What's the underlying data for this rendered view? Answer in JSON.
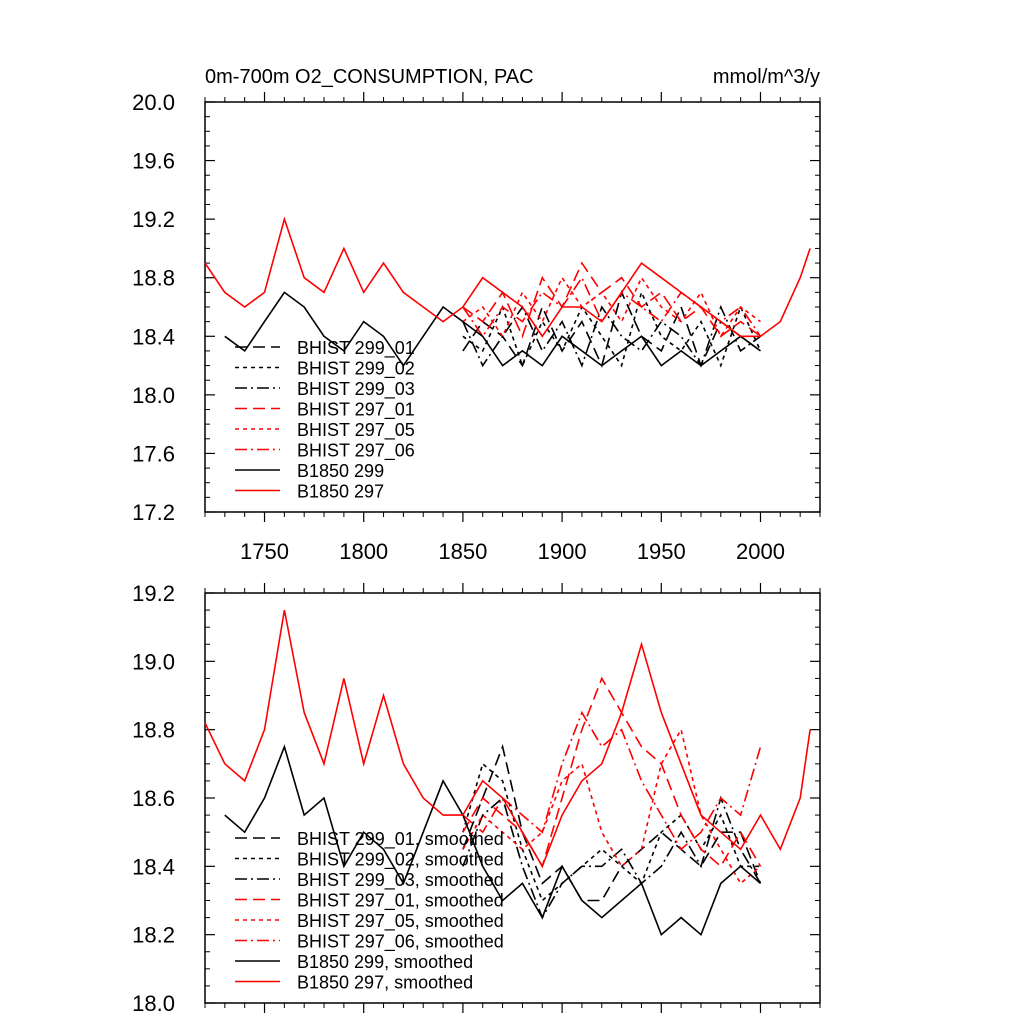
{
  "chart_data": [
    {
      "type": "line",
      "title_left": "0m-700m O2_CONSUMPTION, PAC",
      "title_right": "mmol/m^3/y",
      "xlim": [
        1720,
        2030
      ],
      "ylim": [
        17.2,
        20.0
      ],
      "xticks": [
        1750,
        1800,
        1850,
        1900,
        1950,
        2000
      ],
      "yticks": [
        17.2,
        17.6,
        18.0,
        18.4,
        18.8,
        19.2,
        19.6,
        20.0
      ],
      "ytick_labels": [
        "17.2",
        "17.6",
        "18.0",
        "18.4",
        "18.8",
        "19.2",
        "19.6",
        "20.0"
      ],
      "legend": [
        "BHIST 299_01",
        "BHIST 299_02",
        "BHIST 299_03",
        "BHIST 297_01",
        "BHIST 297_05",
        "BHIST 297_06",
        "B1850 299",
        "B1850 297"
      ],
      "series": [
        {
          "name": "BHIST 299_01",
          "color": "#000000",
          "dash": "long",
          "x": [
            1850,
            1860,
            1870,
            1880,
            1890,
            1900,
            1910,
            1920,
            1930,
            1940,
            1950,
            1960,
            1970,
            1980,
            1990,
            2000
          ],
          "values": [
            18.3,
            18.5,
            18.4,
            18.2,
            18.6,
            18.3,
            18.5,
            18.2,
            18.7,
            18.4,
            18.3,
            18.6,
            18.2,
            18.5,
            18.4,
            18.3
          ]
        },
        {
          "name": "BHIST 299_02",
          "color": "#000000",
          "dash": "short",
          "x": [
            1850,
            1860,
            1870,
            1880,
            1890,
            1900,
            1910,
            1920,
            1930,
            1940,
            1950,
            1960,
            1970,
            1980,
            1990,
            2000
          ],
          "values": [
            18.4,
            18.3,
            18.6,
            18.2,
            18.5,
            18.3,
            18.6,
            18.4,
            18.2,
            18.7,
            18.4,
            18.3,
            18.5,
            18.2,
            18.6,
            18.3
          ]
        },
        {
          "name": "BHIST 299_03",
          "color": "#000000",
          "dash": "dashdot",
          "x": [
            1850,
            1860,
            1870,
            1880,
            1890,
            1900,
            1910,
            1920,
            1930,
            1940,
            1950,
            1960,
            1970,
            1980,
            1990,
            2000
          ],
          "values": [
            18.5,
            18.2,
            18.4,
            18.6,
            18.3,
            18.5,
            18.2,
            18.6,
            18.4,
            18.3,
            18.5,
            18.4,
            18.2,
            18.6,
            18.3,
            18.4
          ]
        },
        {
          "name": "BHIST 297_01",
          "color": "#ff0000",
          "dash": "long",
          "x": [
            1850,
            1860,
            1870,
            1880,
            1890,
            1900,
            1910,
            1920,
            1930,
            1940,
            1950,
            1960,
            1970,
            1980,
            1990,
            2000
          ],
          "values": [
            18.6,
            18.5,
            18.7,
            18.4,
            18.8,
            18.6,
            18.9,
            18.7,
            18.8,
            18.6,
            18.7,
            18.5,
            18.6,
            18.4,
            18.5,
            18.4
          ]
        },
        {
          "name": "BHIST 297_05",
          "color": "#ff0000",
          "dash": "short",
          "x": [
            1850,
            1860,
            1870,
            1880,
            1890,
            1900,
            1910,
            1920,
            1930,
            1940,
            1950,
            1960,
            1970,
            1980,
            1990,
            2000
          ],
          "values": [
            18.5,
            18.6,
            18.4,
            18.7,
            18.5,
            18.8,
            18.6,
            18.7,
            18.5,
            18.8,
            18.6,
            18.5,
            18.7,
            18.4,
            18.6,
            18.5
          ]
        },
        {
          "name": "BHIST 297_06",
          "color": "#ff0000",
          "dash": "dashdot",
          "x": [
            1850,
            1860,
            1870,
            1880,
            1890,
            1900,
            1910,
            1920,
            1930,
            1940,
            1950,
            1960,
            1970,
            1980,
            1990,
            2000
          ],
          "values": [
            18.6,
            18.4,
            18.6,
            18.5,
            18.7,
            18.6,
            18.8,
            18.5,
            18.7,
            18.6,
            18.5,
            18.7,
            18.6,
            18.5,
            18.6,
            18.4
          ]
        },
        {
          "name": "B1850 299",
          "color": "#000000",
          "dash": "solid",
          "x": [
            1730,
            1740,
            1750,
            1760,
            1770,
            1780,
            1790,
            1800,
            1810,
            1820,
            1830,
            1840,
            1850,
            1860,
            1870,
            1880,
            1890,
            1900,
            1910,
            1920,
            1930,
            1940,
            1950,
            1960,
            1970,
            1980,
            1990,
            2000
          ],
          "values": [
            18.4,
            18.3,
            18.5,
            18.7,
            18.6,
            18.4,
            18.3,
            18.5,
            18.4,
            18.2,
            18.4,
            18.6,
            18.5,
            18.4,
            18.2,
            18.3,
            18.2,
            18.4,
            18.3,
            18.2,
            18.3,
            18.4,
            18.2,
            18.3,
            18.2,
            18.3,
            18.4,
            18.3
          ]
        },
        {
          "name": "B1850 297",
          "color": "#ff0000",
          "dash": "solid",
          "x": [
            1720,
            1730,
            1740,
            1750,
            1760,
            1770,
            1780,
            1790,
            1800,
            1810,
            1820,
            1830,
            1840,
            1850,
            1860,
            1870,
            1880,
            1890,
            1900,
            1910,
            1920,
            1930,
            1940,
            1950,
            1960,
            1970,
            1980,
            1990,
            2000,
            2010,
            2020,
            2025
          ],
          "values": [
            18.9,
            18.7,
            18.6,
            18.7,
            19.2,
            18.8,
            18.7,
            19.0,
            18.7,
            18.9,
            18.7,
            18.6,
            18.5,
            18.6,
            18.8,
            18.7,
            18.6,
            18.4,
            18.6,
            18.6,
            18.5,
            18.7,
            18.9,
            18.8,
            18.7,
            18.6,
            18.5,
            18.4,
            18.4,
            18.5,
            18.8,
            19.0
          ]
        }
      ]
    },
    {
      "type": "line",
      "xlim": [
        1720,
        2030
      ],
      "ylim": [
        18.0,
        19.2
      ],
      "xticks": [
        1750,
        1800,
        1850,
        1900,
        1950,
        2000
      ],
      "yticks": [
        18.0,
        18.2,
        18.4,
        18.6,
        18.8,
        19.0,
        19.2
      ],
      "ytick_labels": [
        "18.0",
        "18.2",
        "18.4",
        "18.6",
        "18.8",
        "19.0",
        "19.2"
      ],
      "legend": [
        "BHIST 299_01, smoothed",
        "BHIST 299_02, smoothed",
        "BHIST 299_03, smoothed",
        "BHIST 297_01, smoothed",
        "BHIST 297_05, smoothed",
        "BHIST 297_06, smoothed",
        "B1850 299, smoothed",
        "B1850 297, smoothed"
      ],
      "series": [
        {
          "name": "BHIST 299_01, smoothed",
          "color": "#000000",
          "dash": "long",
          "x": [
            1850,
            1860,
            1870,
            1880,
            1890,
            1900,
            1910,
            1920,
            1930,
            1940,
            1950,
            1960,
            1970,
            1980,
            1990,
            2000
          ],
          "values": [
            18.45,
            18.6,
            18.75,
            18.5,
            18.35,
            18.4,
            18.3,
            18.3,
            18.4,
            18.45,
            18.5,
            18.45,
            18.4,
            18.5,
            18.5,
            18.35
          ]
        },
        {
          "name": "BHIST 299_02, smoothed",
          "color": "#000000",
          "dash": "short",
          "x": [
            1850,
            1860,
            1870,
            1880,
            1890,
            1900,
            1910,
            1920,
            1930,
            1940,
            1950,
            1960,
            1970,
            1980,
            1990,
            2000
          ],
          "values": [
            18.5,
            18.7,
            18.65,
            18.45,
            18.3,
            18.35,
            18.4,
            18.45,
            18.4,
            18.35,
            18.5,
            18.55,
            18.45,
            18.55,
            18.4,
            18.4
          ]
        },
        {
          "name": "BHIST 299_03, smoothed",
          "color": "#000000",
          "dash": "dashdot",
          "x": [
            1850,
            1860,
            1870,
            1880,
            1890,
            1900,
            1910,
            1920,
            1930,
            1940,
            1950,
            1960,
            1970,
            1980,
            1990,
            2000
          ],
          "values": [
            18.4,
            18.55,
            18.6,
            18.4,
            18.25,
            18.35,
            18.4,
            18.4,
            18.45,
            18.35,
            18.4,
            18.5,
            18.4,
            18.6,
            18.45,
            18.35
          ]
        },
        {
          "name": "BHIST 297_01, smoothed",
          "color": "#ff0000",
          "dash": "long",
          "x": [
            1850,
            1860,
            1870,
            1880,
            1890,
            1900,
            1910,
            1920,
            1930,
            1940,
            1950,
            1960,
            1970,
            1980,
            1990,
            2000
          ],
          "values": [
            18.5,
            18.6,
            18.55,
            18.5,
            18.4,
            18.6,
            18.8,
            18.95,
            18.85,
            18.75,
            18.7,
            18.55,
            18.45,
            18.4,
            18.5,
            18.4
          ]
        },
        {
          "name": "BHIST 297_05, smoothed",
          "color": "#ff0000",
          "dash": "short",
          "x": [
            1850,
            1860,
            1870,
            1880,
            1890,
            1900,
            1910,
            1920,
            1930,
            1940,
            1950,
            1960,
            1970,
            1980,
            1990,
            2000
          ],
          "values": [
            18.45,
            18.55,
            18.5,
            18.45,
            18.5,
            18.65,
            18.7,
            18.5,
            18.4,
            18.45,
            18.7,
            18.8,
            18.55,
            18.45,
            18.35,
            18.4
          ]
        },
        {
          "name": "BHIST 297_06, smoothed",
          "color": "#ff0000",
          "dash": "dashdot",
          "x": [
            1850,
            1860,
            1870,
            1880,
            1890,
            1900,
            1910,
            1920,
            1930,
            1940,
            1950,
            1960,
            1970,
            1980,
            1990,
            2000
          ],
          "values": [
            18.55,
            18.5,
            18.6,
            18.55,
            18.5,
            18.7,
            18.85,
            18.75,
            18.8,
            18.65,
            18.55,
            18.45,
            18.5,
            18.6,
            18.55,
            18.75
          ]
        },
        {
          "name": "B1850 299, smoothed",
          "color": "#000000",
          "dash": "solid",
          "x": [
            1730,
            1740,
            1750,
            1760,
            1770,
            1780,
            1790,
            1800,
            1810,
            1820,
            1830,
            1840,
            1850,
            1860,
            1870,
            1880,
            1890,
            1900,
            1910,
            1920,
            1930,
            1940,
            1950,
            1960,
            1970,
            1980,
            1990,
            2000
          ],
          "values": [
            18.55,
            18.5,
            18.6,
            18.75,
            18.55,
            18.6,
            18.4,
            18.5,
            18.45,
            18.35,
            18.5,
            18.65,
            18.55,
            18.4,
            18.3,
            18.35,
            18.25,
            18.4,
            18.3,
            18.25,
            18.3,
            18.35,
            18.2,
            18.25,
            18.2,
            18.35,
            18.4,
            18.35
          ]
        },
        {
          "name": "B1850 297, smoothed",
          "color": "#ff0000",
          "dash": "solid",
          "x": [
            1720,
            1730,
            1740,
            1750,
            1760,
            1770,
            1780,
            1790,
            1800,
            1810,
            1820,
            1830,
            1840,
            1850,
            1860,
            1870,
            1880,
            1890,
            1900,
            1910,
            1920,
            1930,
            1940,
            1950,
            1960,
            1970,
            1980,
            1990,
            2000,
            2010,
            2020,
            2025
          ],
          "values": [
            18.82,
            18.7,
            18.65,
            18.8,
            19.15,
            18.85,
            18.7,
            18.95,
            18.7,
            18.9,
            18.7,
            18.6,
            18.55,
            18.55,
            18.65,
            18.6,
            18.5,
            18.4,
            18.55,
            18.65,
            18.7,
            18.85,
            19.05,
            18.85,
            18.7,
            18.55,
            18.5,
            18.45,
            18.55,
            18.45,
            18.6,
            18.8
          ]
        }
      ]
    }
  ]
}
